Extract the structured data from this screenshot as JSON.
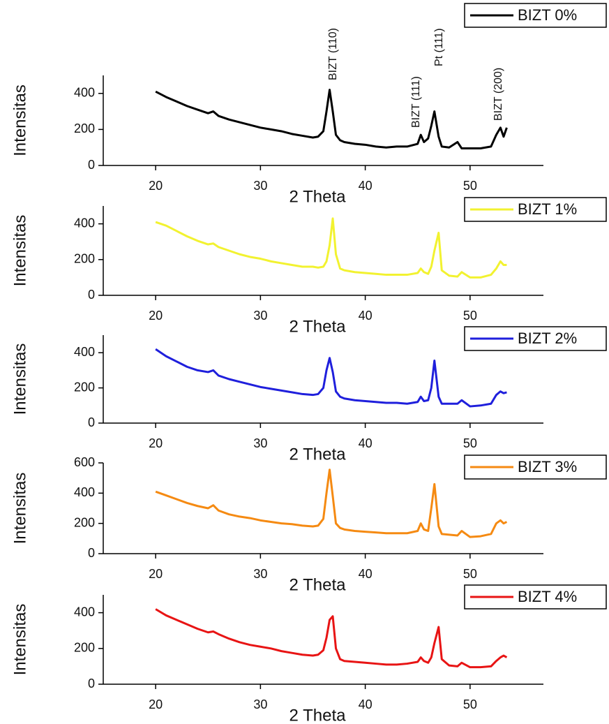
{
  "chart_data": [
    {
      "type": "line",
      "xlabel": "2 Theta",
      "ylabel": "Intensitas",
      "annotations": [
        "BIZT (110)",
        "BIZT (111)",
        "Pt (111)",
        "BIZT (200)"
      ],
      "x": [
        20,
        21,
        22,
        23,
        24,
        25,
        25.5,
        26,
        27,
        28,
        29,
        30,
        31,
        32,
        33,
        34,
        35,
        35.5,
        36,
        36.3,
        36.6,
        36.9,
        37.2,
        37.6,
        38,
        39,
        40,
        41,
        42,
        43,
        44,
        45,
        45.3,
        45.6,
        46,
        46.3,
        46.6,
        47,
        47.3,
        48,
        48.8,
        49.2,
        50,
        51,
        52,
        52.5,
        52.9,
        53.2,
        53.5
      ],
      "series": [
        {
          "name": "BIZT 0%",
          "color": "#000000",
          "values": [
            410,
            380,
            355,
            330,
            310,
            290,
            300,
            275,
            255,
            240,
            225,
            210,
            200,
            190,
            175,
            165,
            155,
            160,
            190,
            300,
            420,
            300,
            170,
            140,
            130,
            120,
            115,
            105,
            100,
            105,
            105,
            120,
            170,
            130,
            150,
            220,
            300,
            160,
            105,
            100,
            130,
            95,
            95,
            95,
            105,
            170,
            210,
            160,
            210
          ]
        }
      ],
      "xlim": [
        15,
        57
      ],
      "xticks": [
        20,
        30,
        40,
        50
      ],
      "ylim": [
        0,
        500
      ],
      "yticks": [
        0,
        200,
        400
      ]
    },
    {
      "type": "line",
      "xlabel": "2 Theta",
      "ylabel": "Intensitas",
      "x": [
        20,
        21,
        22,
        23,
        24,
        25,
        25.5,
        26,
        27,
        28,
        29,
        30,
        31,
        32,
        33,
        34,
        35,
        35.5,
        36,
        36.3,
        36.6,
        36.9,
        37.2,
        37.6,
        38,
        39,
        40,
        41,
        42,
        43,
        44,
        45,
        45.3,
        45.6,
        46,
        46.3,
        46.6,
        47,
        47.3,
        48,
        48.8,
        49.2,
        50,
        51,
        52,
        52.5,
        52.9,
        53.2,
        53.5
      ],
      "series": [
        {
          "name": "BIZT 1%",
          "color": "#f2f230",
          "values": [
            410,
            390,
            360,
            330,
            305,
            285,
            290,
            270,
            250,
            230,
            215,
            205,
            190,
            180,
            170,
            160,
            160,
            155,
            160,
            190,
            280,
            430,
            230,
            150,
            140,
            130,
            125,
            120,
            115,
            115,
            115,
            125,
            150,
            130,
            120,
            160,
            250,
            350,
            140,
            110,
            105,
            130,
            100,
            100,
            115,
            150,
            190,
            170,
            170
          ]
        }
      ],
      "xlim": [
        15,
        57
      ],
      "xticks": [
        20,
        30,
        40,
        50
      ],
      "ylim": [
        0,
        500
      ],
      "yticks": [
        0,
        200,
        400
      ]
    },
    {
      "type": "line",
      "xlabel": "2 Theta",
      "ylabel": "Intensitas",
      "x": [
        20,
        21,
        22,
        23,
        24,
        25,
        25.5,
        26,
        27,
        28,
        29,
        30,
        31,
        32,
        33,
        34,
        35,
        35.5,
        36,
        36.3,
        36.6,
        36.9,
        37.2,
        37.6,
        38,
        39,
        40,
        41,
        42,
        43,
        44,
        45,
        45.3,
        45.6,
        46,
        46.3,
        46.6,
        47,
        47.3,
        48,
        48.8,
        49.2,
        50,
        51,
        52,
        52.5,
        52.9,
        53.2,
        53.5
      ],
      "series": [
        {
          "name": "BIZT 2%",
          "color": "#1f1fdc",
          "values": [
            420,
            380,
            350,
            320,
            300,
            290,
            300,
            270,
            250,
            235,
            220,
            205,
            195,
            185,
            175,
            165,
            160,
            165,
            200,
            300,
            370,
            290,
            180,
            150,
            140,
            130,
            125,
            120,
            115,
            115,
            110,
            120,
            150,
            125,
            130,
            200,
            355,
            150,
            110,
            110,
            110,
            130,
            95,
            100,
            110,
            160,
            180,
            170,
            175
          ]
        }
      ],
      "xlim": [
        15,
        57
      ],
      "xticks": [
        20,
        30,
        40,
        50
      ],
      "ylim": [
        0,
        500
      ],
      "yticks": [
        0,
        200,
        400
      ]
    },
    {
      "type": "line",
      "xlabel": "2 Theta",
      "ylabel": "Intensitas",
      "x": [
        20,
        21,
        22,
        23,
        24,
        25,
        25.5,
        26,
        27,
        28,
        29,
        30,
        31,
        32,
        33,
        34,
        35,
        35.5,
        36,
        36.3,
        36.6,
        36.9,
        37.2,
        37.6,
        38,
        39,
        40,
        41,
        42,
        43,
        44,
        45,
        45.3,
        45.6,
        46,
        46.3,
        46.6,
        47,
        47.3,
        48,
        48.8,
        49.2,
        50,
        51,
        52,
        52.5,
        52.9,
        53.2,
        53.5
      ],
      "series": [
        {
          "name": "BIZT 3%",
          "color": "#f58a12",
          "values": [
            410,
            385,
            360,
            335,
            315,
            300,
            320,
            285,
            260,
            245,
            235,
            220,
            210,
            200,
            195,
            185,
            180,
            185,
            230,
            400,
            555,
            380,
            200,
            170,
            160,
            150,
            145,
            140,
            135,
            135,
            135,
            150,
            200,
            160,
            150,
            300,
            460,
            180,
            130,
            125,
            120,
            150,
            110,
            115,
            130,
            200,
            220,
            200,
            210
          ]
        }
      ],
      "xlim": [
        15,
        57
      ],
      "xticks": [
        20,
        30,
        40,
        50
      ],
      "ylim": [
        0,
        600
      ],
      "yticks": [
        0,
        200,
        400,
        600
      ]
    },
    {
      "type": "line",
      "xlabel": "2 Theta",
      "ylabel": "Intensitas",
      "x": [
        20,
        21,
        22,
        23,
        24,
        25,
        25.5,
        26,
        27,
        28,
        29,
        30,
        31,
        32,
        33,
        34,
        35,
        35.5,
        36,
        36.3,
        36.6,
        36.9,
        37.2,
        37.6,
        38,
        39,
        40,
        41,
        42,
        43,
        44,
        45,
        45.3,
        45.6,
        46,
        46.3,
        46.6,
        47,
        47.3,
        48,
        48.8,
        49.2,
        50,
        51,
        52,
        52.5,
        52.9,
        53.2,
        53.5
      ],
      "series": [
        {
          "name": "BIZT 4%",
          "color": "#e81414",
          "values": [
            420,
            385,
            360,
            335,
            310,
            290,
            295,
            280,
            255,
            235,
            220,
            210,
            200,
            185,
            175,
            165,
            160,
            165,
            190,
            260,
            360,
            380,
            200,
            140,
            130,
            125,
            120,
            115,
            110,
            110,
            115,
            125,
            150,
            130,
            120,
            150,
            230,
            320,
            140,
            105,
            100,
            120,
            95,
            95,
            100,
            130,
            150,
            160,
            150
          ]
        }
      ],
      "xlim": [
        15,
        57
      ],
      "xticks": [
        20,
        30,
        40,
        50
      ],
      "ylim": [
        0,
        500
      ],
      "yticks": [
        0,
        200,
        400
      ]
    }
  ]
}
